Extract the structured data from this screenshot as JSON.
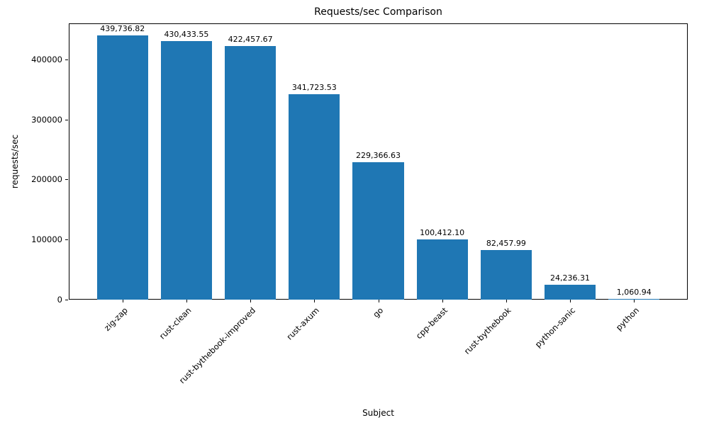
{
  "chart_data": {
    "type": "bar",
    "title": "Requests/sec Comparison",
    "xlabel": "Subject",
    "ylabel": "requests/sec",
    "categories": [
      "zig-zap",
      "rust-clean",
      "rust-bythebook-improved",
      "rust-axum",
      "go",
      "cpp-beast",
      "rust-bythebook",
      "python-sanic",
      "python"
    ],
    "values": [
      439736.82,
      430433.55,
      422457.67,
      341723.53,
      229366.63,
      100412.1,
      82457.99,
      24236.31,
      1060.94
    ],
    "value_labels": [
      "439,736.82",
      "430,433.55",
      "422,457.67",
      "341,723.53",
      "229,366.63",
      "100,412.10",
      "82,457.99",
      "24,236.31",
      "1,060.94"
    ],
    "ytick_labels": [
      "0",
      "100000",
      "200000",
      "300000",
      "400000"
    ],
    "yticks": [
      0,
      100000,
      200000,
      300000,
      400000
    ],
    "ylim": [
      0,
      460000
    ],
    "bar_color": "#1f77b4",
    "grid": false,
    "legend_position": "none"
  }
}
